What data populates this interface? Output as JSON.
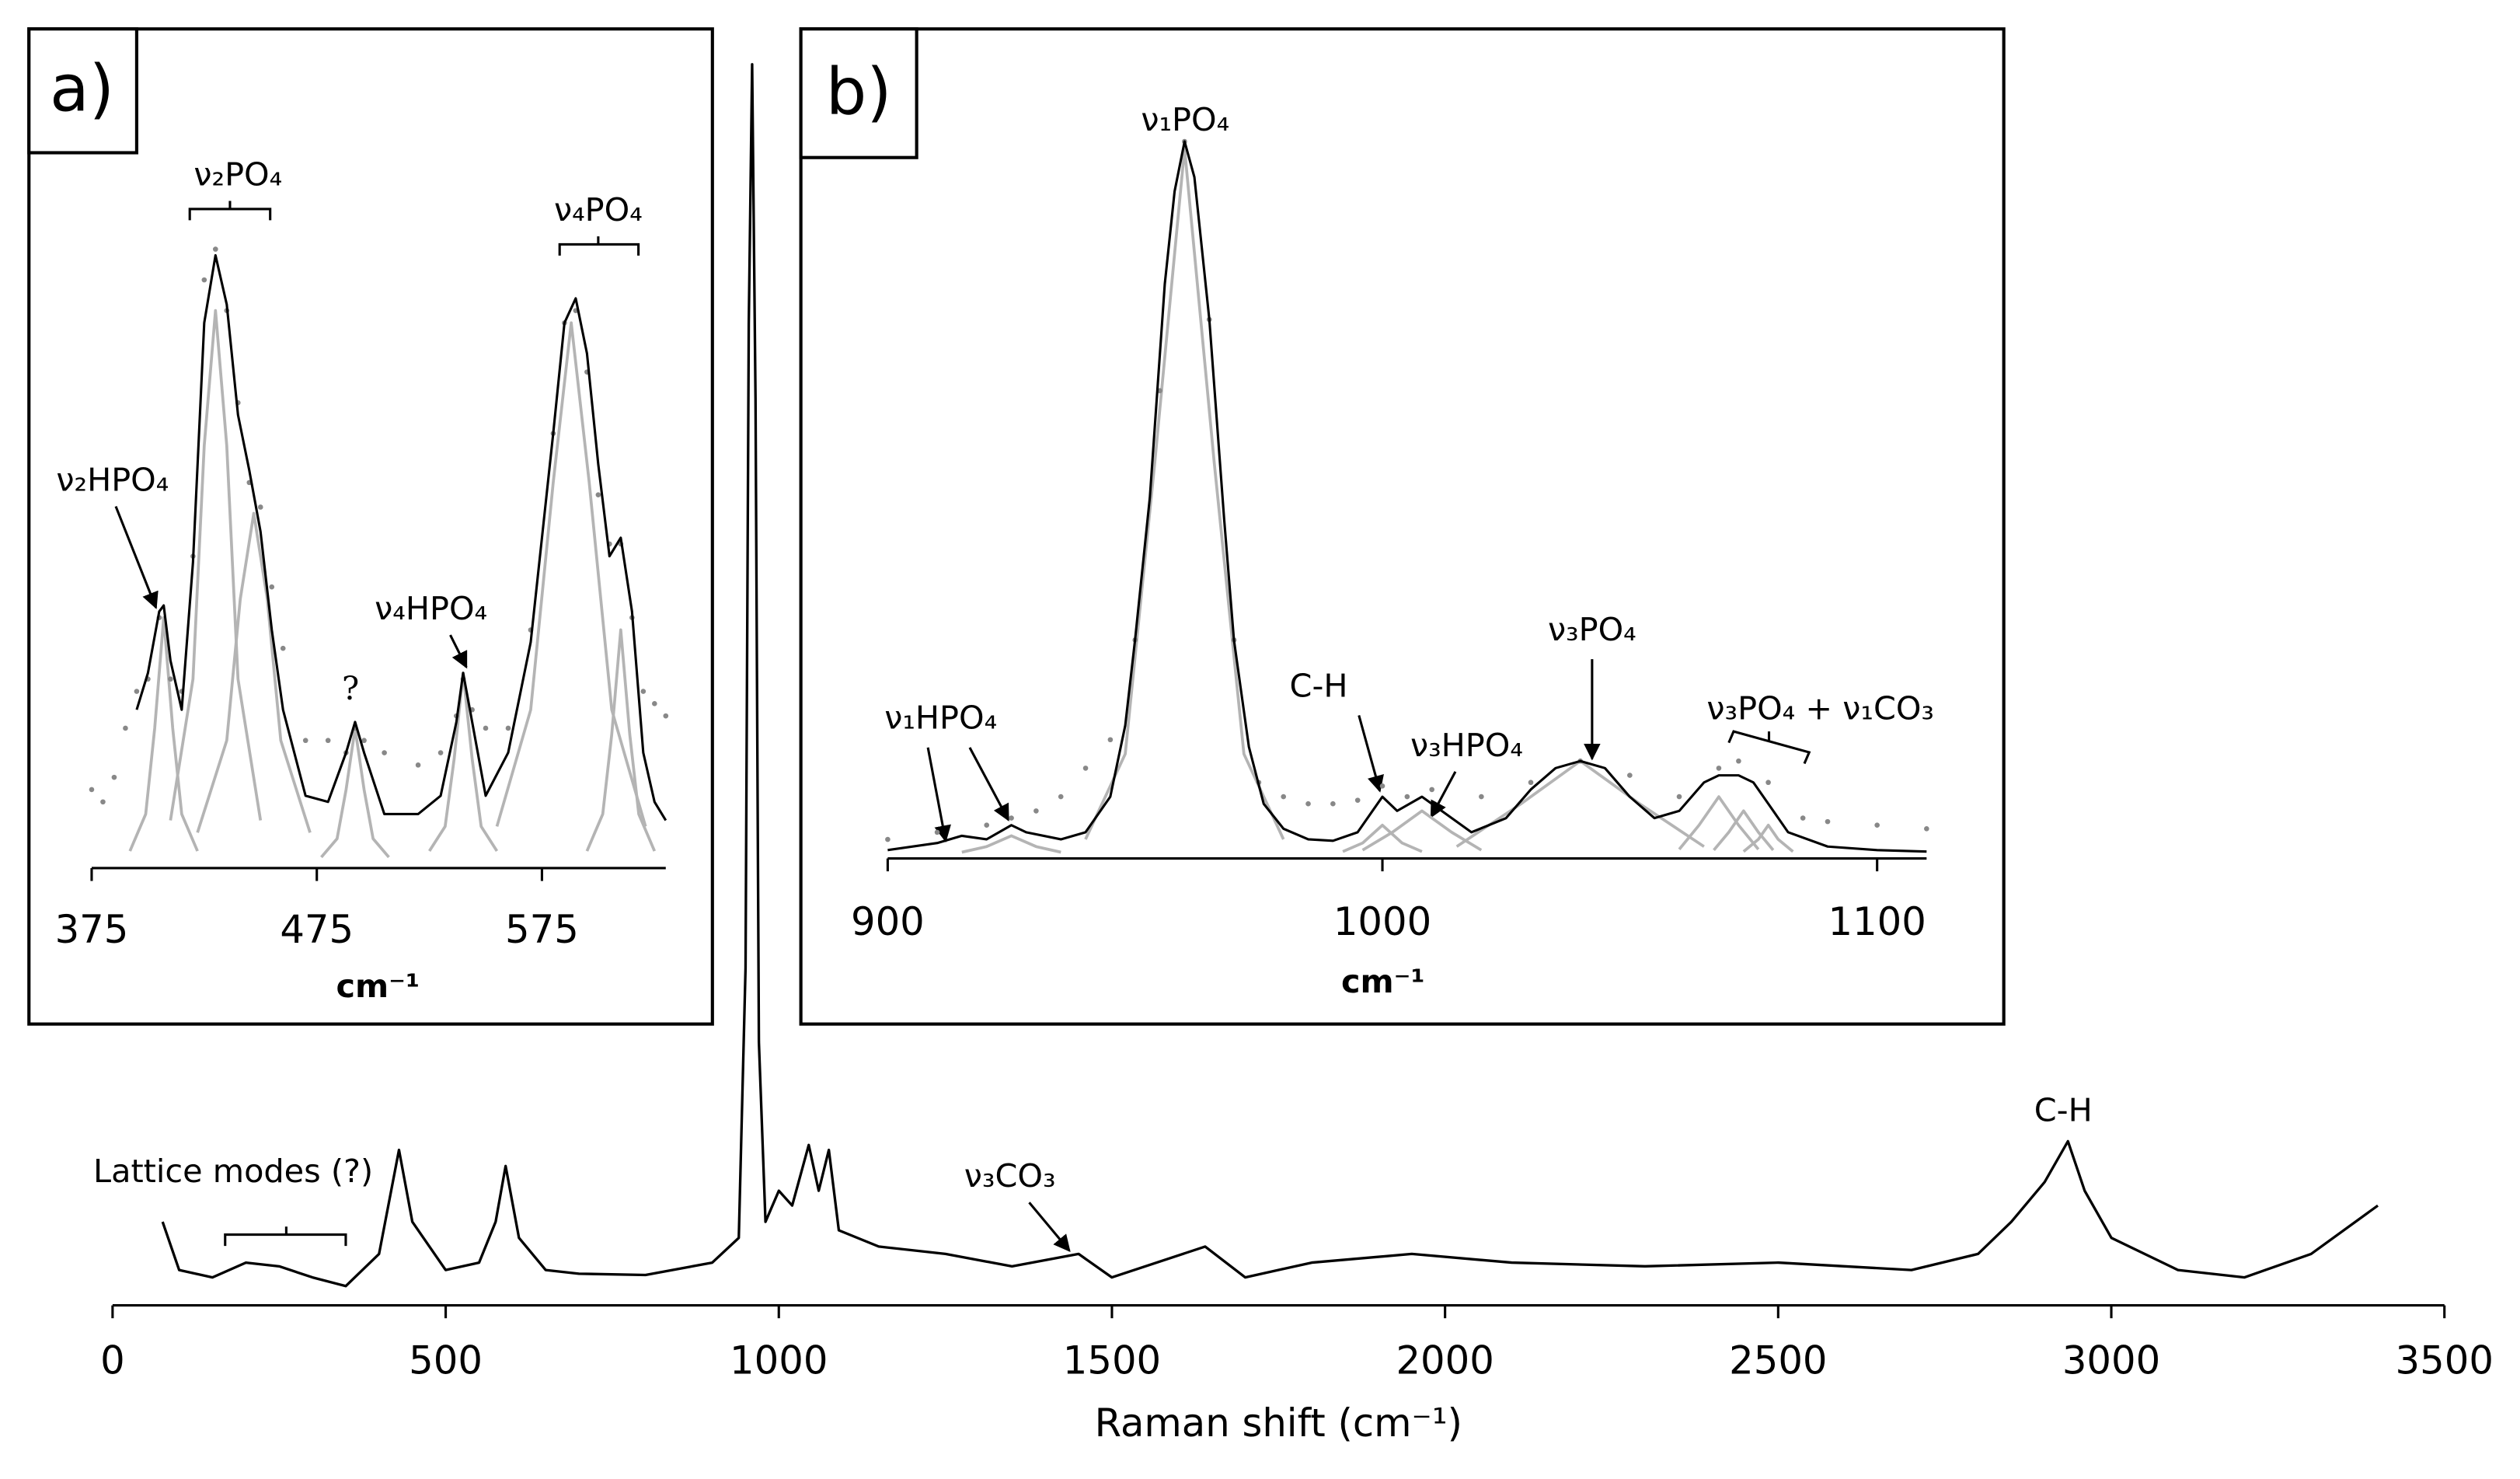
{
  "chart_data": [
    {
      "type": "line",
      "xlabel": "Raman shift (cm⁻¹)",
      "xlim": [
        0,
        3500
      ],
      "xticks": [
        0,
        500,
        1000,
        1500,
        2000,
        2500,
        3000,
        3500
      ],
      "color": "#000000",
      "annotations": [
        "Lattice modes (?)",
        "ν₃CO₃",
        "C-H"
      ],
      "x": [
        75,
        100,
        150,
        200,
        250,
        300,
        350,
        400,
        430,
        450,
        500,
        550,
        575,
        590,
        610,
        650,
        700,
        800,
        900,
        940,
        950,
        955,
        960,
        965,
        970,
        980,
        1000,
        1020,
        1045,
        1060,
        1075,
        1090,
        1150,
        1250,
        1350,
        1450,
        1500,
        1640,
        1700,
        1800,
        1950,
        2100,
        2300,
        2500,
        2700,
        2800,
        2850,
        2900,
        2935,
        2960,
        3000,
        3100,
        3200,
        3300,
        3400
      ],
      "values": [
        6.5,
        2.6,
        2,
        3.2,
        2.9,
        2,
        1.3,
        3.9,
        12.3,
        6.5,
        2.6,
        3.2,
        6.5,
        11,
        5.2,
        2.6,
        2.3,
        2.2,
        3.2,
        5.2,
        27,
        79,
        100,
        73,
        21,
        6.5,
        9,
        7.8,
        12.7,
        9,
        12.3,
        5.8,
        4.5,
        3.9,
        2.9,
        3.9,
        2,
        4.5,
        2,
        3.2,
        3.9,
        3.2,
        2.9,
        3.2,
        2.6,
        3.9,
        6.5,
        9.7,
        13,
        9,
        5.2,
        2.6,
        2,
        3.9,
        7.8
      ]
    },
    {
      "type": "line",
      "panel_label": "a)",
      "xlabel": "cm⁻¹",
      "xlim": [
        375,
        630
      ],
      "xticks": [
        375,
        475,
        575
      ],
      "annotations": [
        "ν₂PO₄",
        "ν₄PO₄",
        "ν₂HPO₄",
        "ν₄HPO₄",
        "?"
      ],
      "measured": {
        "color": "#888888",
        "x": [
          375,
          380,
          385,
          390,
          395,
          400,
          405,
          410,
          415,
          420,
          425,
          430,
          435,
          440,
          445,
          450,
          455,
          460,
          470,
          480,
          488,
          492,
          496,
          505,
          520,
          530,
          537,
          540,
          544,
          550,
          560,
          570,
          580,
          585,
          590,
          595,
          600,
          605,
          610,
          615,
          620,
          625,
          630
        ],
        "values": [
          12,
          10,
          14,
          22,
          28,
          30,
          40,
          30,
          28,
          50,
          95,
          100,
          90,
          75,
          62,
          58,
          45,
          35,
          20,
          20,
          18,
          22,
          20,
          18,
          16,
          18,
          24,
          30,
          25,
          22,
          22,
          38,
          70,
          88,
          90,
          80,
          60,
          52,
          52,
          40,
          28,
          26,
          24
        ]
      },
      "fit": {
        "color": "#000000",
        "x": [
          395,
          400,
          405,
          407,
          410,
          415,
          420,
          425,
          430,
          435,
          440,
          445,
          450,
          455,
          460,
          470,
          480,
          488,
          492,
          496,
          505,
          520,
          530,
          537,
          540,
          544,
          550,
          560,
          570,
          580,
          585,
          590,
          595,
          600,
          605,
          610,
          615,
          620,
          625,
          630
        ],
        "values": [
          25,
          31,
          41,
          42,
          33,
          25,
          49,
          88,
          99,
          91,
          73,
          64,
          54,
          38,
          25,
          11,
          10,
          18,
          23,
          18,
          8,
          8,
          11,
          23,
          31,
          23,
          11,
          18,
          36,
          70,
          88,
          92,
          83,
          65,
          50,
          53,
          41,
          18,
          10,
          7
        ]
      },
      "components": [
        {
          "color": "#b4b4b4",
          "x": [
            392,
            399,
            403,
            407,
            411,
            415,
            422
          ],
          "values": [
            2,
            8,
            22,
            40,
            22,
            8,
            2
          ]
        },
        {
          "color": "#b4b4b4",
          "x": [
            410,
            420,
            425,
            430,
            435,
            440,
            450
          ],
          "values": [
            7,
            30,
            68,
            90,
            68,
            30,
            7
          ]
        },
        {
          "color": "#b4b4b4",
          "x": [
            422,
            435,
            441,
            447,
            453,
            459,
            472
          ],
          "values": [
            5,
            20,
            43,
            57,
            43,
            20,
            5
          ]
        },
        {
          "color": "#b4b4b4",
          "x": [
            477,
            484,
            488,
            492,
            496,
            500,
            507
          ],
          "values": [
            1,
            4,
            12,
            22,
            12,
            4,
            1
          ]
        },
        {
          "color": "#b4b4b4",
          "x": [
            525,
            532,
            536,
            540,
            544,
            548,
            555
          ],
          "values": [
            2,
            6,
            17,
            31,
            17,
            6,
            2
          ]
        },
        {
          "color": "#b4b4b4",
          "x": [
            555,
            570,
            580,
            588,
            596,
            606,
            621
          ],
          "values": [
            6,
            25,
            62,
            88,
            62,
            25,
            6
          ]
        },
        {
          "color": "#b4b4b4",
          "x": [
            595,
            602,
            606,
            610,
            614,
            618,
            625
          ],
          "values": [
            2,
            8,
            21,
            38,
            21,
            8,
            2
          ]
        }
      ]
    },
    {
      "type": "line",
      "panel_label": "b)",
      "xlabel": "cm⁻¹",
      "xlim": [
        900,
        1110
      ],
      "xticks": [
        900,
        1000,
        1100
      ],
      "annotations": [
        "ν₁PO₄",
        "ν₁HPO₄",
        "C-H",
        "ν₃HPO₄",
        "ν₃PO₄",
        "ν₃PO₄ + ν₁CO₃"
      ],
      "measured": {
        "color": "#888888",
        "x": [
          900,
          910,
          920,
          925,
          930,
          935,
          940,
          945,
          950,
          955,
          960,
          965,
          970,
          975,
          980,
          985,
          990,
          995,
          1000,
          1005,
          1010,
          1020,
          1030,
          1040,
          1050,
          1060,
          1068,
          1072,
          1078,
          1085,
          1090,
          1100,
          1110
        ],
        "values": [
          2,
          3,
          4,
          5,
          6,
          8,
          12,
          16,
          30,
          65,
          100,
          75,
          30,
          10,
          8,
          7,
          7,
          7.5,
          9.5,
          8,
          9,
          8,
          10,
          13,
          11,
          8,
          12,
          13,
          10,
          5,
          4.5,
          4,
          3.5
        ]
      },
      "fit": {
        "color": "#000000",
        "x": [
          900,
          910,
          915,
          920,
          925,
          928,
          935,
          940,
          945,
          948,
          950,
          953,
          956,
          958,
          960,
          962,
          965,
          968,
          970,
          973,
          976,
          980,
          985,
          990,
          995,
          1000,
          1003,
          1008,
          1012,
          1018,
          1025,
          1030,
          1035,
          1040,
          1045,
          1050,
          1055,
          1060,
          1065,
          1068,
          1072,
          1075,
          1078,
          1082,
          1090,
          1100,
          1110
        ],
        "values": [
          0.5,
          1.5,
          2.5,
          2,
          4,
          3,
          2,
          3,
          8,
          18,
          30,
          50,
          80,
          93,
          100,
          95,
          75,
          47,
          30,
          15,
          7,
          3.5,
          2,
          1.8,
          3,
          8,
          6,
          8,
          6,
          3,
          5,
          9,
          12,
          13,
          12,
          8,
          5,
          6,
          10,
          11,
          11,
          10,
          7,
          3,
          1,
          0.5,
          0.3
        ]
      },
      "components": [
        {
          "color": "#b4b4b4",
          "x": [
            915,
            920,
            925,
            930,
            935
          ],
          "values": [
            0.2,
            1,
            2.5,
            1,
            0.2
          ]
        },
        {
          "color": "#b4b4b4",
          "x": [
            940,
            948,
            954,
            960,
            966,
            972,
            980
          ],
          "values": [
            2,
            14,
            55,
            99,
            55,
            14,
            2
          ]
        },
        {
          "color": "#b4b4b4",
          "x": [
            992,
            996,
            1000,
            1004,
            1008
          ],
          "values": [
            0.3,
            1.5,
            4,
            1.5,
            0.3
          ]
        },
        {
          "color": "#b4b4b4",
          "x": [
            996,
            1002,
            1008,
            1014,
            1020
          ],
          "values": [
            0.5,
            3,
            6,
            3,
            0.5
          ]
        },
        {
          "color": "#b4b4b4",
          "x": [
            1015,
            1028,
            1040,
            1052,
            1065
          ],
          "values": [
            1,
            7,
            13,
            7,
            1
          ]
        },
        {
          "color": "#b4b4b4",
          "x": [
            1060,
            1064,
            1068,
            1072,
            1076
          ],
          "values": [
            0.6,
            4,
            8,
            4,
            0.6
          ]
        },
        {
          "color": "#b4b4b4",
          "x": [
            1067,
            1070,
            1073,
            1076,
            1079
          ],
          "values": [
            0.5,
            3,
            6,
            3,
            0.5
          ]
        },
        {
          "color": "#b4b4b4",
          "x": [
            1073,
            1076,
            1078,
            1080,
            1083
          ],
          "values": [
            0.3,
            2,
            4,
            2,
            0.3
          ]
        }
      ]
    }
  ]
}
